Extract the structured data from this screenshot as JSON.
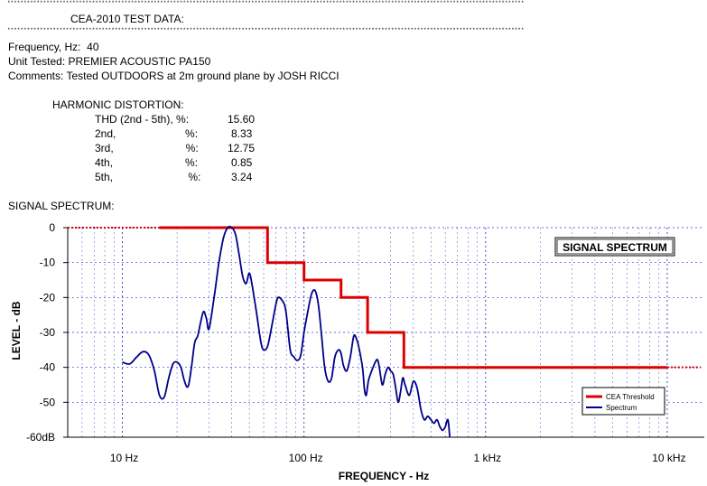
{
  "report": {
    "separator": "**************************************************************************************************************************************************************************************************************",
    "title": "CEA-2010 TEST DATA:",
    "frequency_line": "Frequency, Hz:  40",
    "unit_line": "Unit Tested: PREMIER ACOUSTIC PA150",
    "comments_line": "Comments: Tested OUTDOORS at 2m ground plane by JOSH RICCI",
    "harmonic_heading": "HARMONIC DISTORTION:",
    "harmonics": [
      {
        "label": "THD (2nd - 5th), %:",
        "value": "15.60"
      },
      {
        "label": "2nd,                       %:",
        "value": "8.33"
      },
      {
        "label": "3rd,                        %:",
        "value": "12.75"
      },
      {
        "label": "4th,                        %:",
        "value": "0.85"
      },
      {
        "label": "5th,                         %:",
        "value": "3.24"
      }
    ],
    "spectrum_heading": "SIGNAL SPECTRUM:"
  },
  "chart_data": {
    "type": "line",
    "title": "SIGNAL SPECTRUM",
    "xlabel": "FREQUENCY - Hz",
    "ylabel": "LEVEL - dB",
    "x_scale": "log",
    "xlim": [
      5,
      16000
    ],
    "ylim": [
      -60,
      0
    ],
    "x_tick_labels": [
      {
        "value": 10,
        "label": "10  Hz"
      },
      {
        "value": 100,
        "label": "100  Hz"
      },
      {
        "value": 1000,
        "label": "1 kHz"
      },
      {
        "value": 10000,
        "label": "10 kHz"
      }
    ],
    "y_tick_labels": [
      {
        "value": 0,
        "label": "0"
      },
      {
        "value": -10,
        "label": "-10"
      },
      {
        "value": -20,
        "label": "-20"
      },
      {
        "value": -30,
        "label": "-30"
      },
      {
        "value": -40,
        "label": "-40"
      },
      {
        "value": -50,
        "label": "-50"
      },
      {
        "value": -60,
        "label": "-60dB"
      }
    ],
    "grid": true,
    "legend_position": "bottom-right",
    "series": [
      {
        "name": "CEA Threshold",
        "color": "#dd0000",
        "x": [
          16,
          63,
          63,
          100,
          100,
          160,
          160,
          224,
          224,
          355,
          355,
          10000
        ],
        "y": [
          0,
          0,
          -10,
          -10,
          -15,
          -15,
          -20,
          -20,
          -30,
          -30,
          -40,
          -40
        ],
        "extension_left": {
          "x": [
            5,
            16
          ],
          "y": [
            0,
            0
          ]
        },
        "extension_right": {
          "x": [
            10000,
            16000
          ],
          "y": [
            -40,
            -40
          ]
        }
      },
      {
        "name": "Spectrum",
        "color": "#00008b",
        "x": [
          10,
          11,
          12,
          13,
          14,
          15,
          16,
          17,
          18,
          19,
          20,
          21,
          22,
          23,
          24,
          25,
          26,
          27,
          28,
          29,
          30,
          32,
          34,
          36,
          38,
          40,
          42,
          44,
          46,
          48,
          50,
          52,
          55,
          58,
          60,
          63,
          66,
          70,
          72,
          75,
          78,
          80,
          84,
          88,
          92,
          96,
          100,
          105,
          110,
          115,
          120,
          125,
          130,
          136,
          142,
          148,
          155,
          160,
          165,
          172,
          180,
          188,
          195,
          200,
          210,
          215,
          220,
          226,
          232,
          240,
          250,
          255,
          260,
          270,
          280,
          290,
          300,
          310,
          320,
          330,
          340,
          350,
          360,
          380,
          400,
          420,
          440,
          460,
          480,
          500,
          520,
          540,
          560,
          580,
          600,
          620,
          635
        ],
        "y": [
          -38.5,
          -39,
          -37,
          -35.5,
          -36.5,
          -41,
          -48,
          -48.5,
          -43,
          -39,
          -38.5,
          -40,
          -44,
          -45.5,
          -40,
          -33,
          -31,
          -27,
          -24,
          -26,
          -29,
          -20,
          -10,
          -3,
          0,
          0,
          -2,
          -8,
          -14,
          -16,
          -13,
          -17,
          -25,
          -33,
          -35,
          -34,
          -29,
          -22,
          -20,
          -20.5,
          -22,
          -25,
          -35,
          -37,
          -38,
          -36.5,
          -30,
          -24,
          -19,
          -18,
          -22,
          -31,
          -40,
          -44,
          -43,
          -37,
          -35,
          -36,
          -39.5,
          -41,
          -37,
          -31,
          -32,
          -34,
          -40,
          -46,
          -48,
          -44,
          -42,
          -40,
          -38,
          -38,
          -40,
          -45,
          -42,
          -40,
          -41,
          -42,
          -46,
          -50,
          -47,
          -43,
          -45,
          -48,
          -44,
          -46,
          -52,
          -55,
          -54,
          -55,
          -56,
          -55,
          -57,
          -58,
          -57,
          -55,
          -60
        ]
      }
    ]
  }
}
